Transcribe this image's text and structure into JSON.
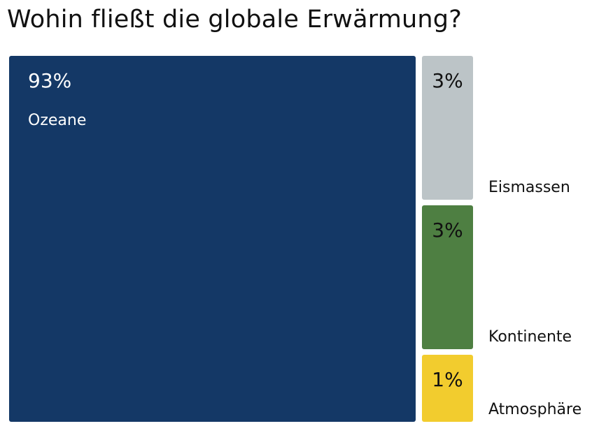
{
  "title": "Wohin fließt die globale Erwärmung?",
  "chart_data": {
    "type": "treemap",
    "title": "Wohin fließt die globale Erwärmung?",
    "unit": "%",
    "items": [
      {
        "name": "Ozeane",
        "value": 93,
        "label": "93%",
        "color": "#143866",
        "text_color": "#ffffff"
      },
      {
        "name": "Eismassen",
        "value": 3,
        "label": "3%",
        "color": "#bcc4c7",
        "text_color": "#111111"
      },
      {
        "name": "Kontinente",
        "value": 3,
        "label": "3%",
        "color": "#4e7f42",
        "text_color": "#111111"
      },
      {
        "name": "Atmosphäre",
        "value": 1,
        "label": "1%",
        "color": "#f2cc2e",
        "text_color": "#111111"
      }
    ]
  }
}
